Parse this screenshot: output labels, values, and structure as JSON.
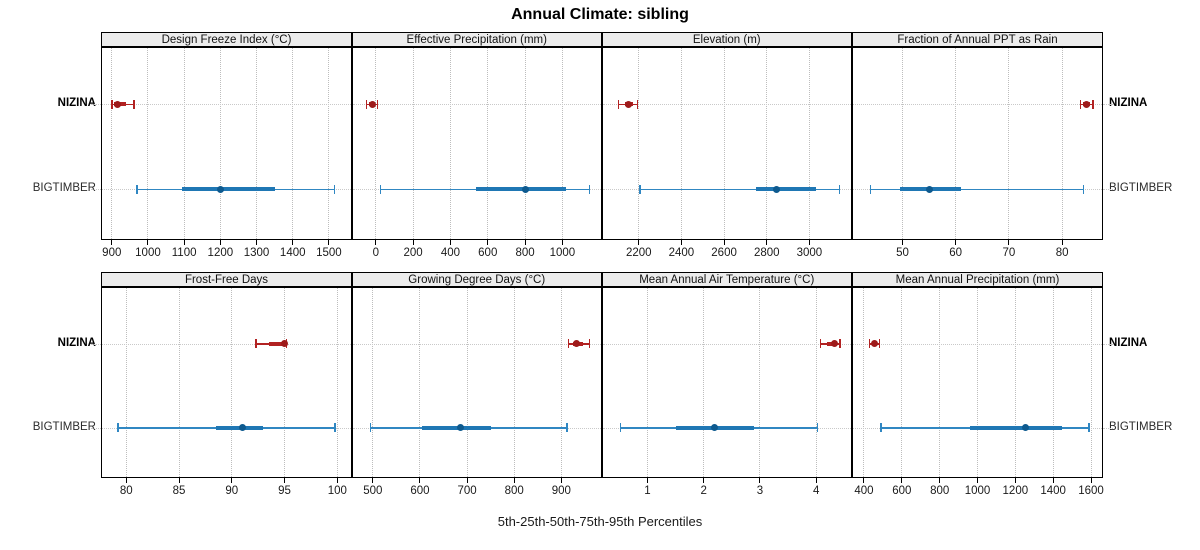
{
  "chart_data": {
    "type": "dotplot",
    "title": "Annual Climate: sibling",
    "footer": "5th-25th-50th-75th-95th Percentiles",
    "percentiles": [
      "5th",
      "25th",
      "50th",
      "75th",
      "95th"
    ],
    "grid": "dotted",
    "layout_hint": "2 rows x 4 columns trellis, shared category axis NIZINA/BIGTIMBER labeled on both sides",
    "groups": [
      {
        "name": "NIZINA",
        "line": "#B22222",
        "bar": "#B22222",
        "dot": "#9E1A1A",
        "emphasis": true
      },
      {
        "name": "BIGTIMBER",
        "line": "#3087C2",
        "bar": "#1F77B4",
        "dot": "#0E5A8F",
        "emphasis": false
      }
    ],
    "panels": [
      {
        "label": "Design Freeze Index (°C)",
        "row": 0,
        "col": 0,
        "ticks": [
          900,
          1000,
          1100,
          1200,
          1300,
          1400,
          1500
        ],
        "xlim": [
          873,
          1561
        ],
        "values": {
          "NIZINA": [
            900,
            905,
            917,
            940,
            962
          ],
          "BIGTIMBER": [
            970,
            1095,
            1200,
            1350,
            1515
          ]
        }
      },
      {
        "label": "Effective Precipitation (mm)",
        "row": 0,
        "col": 1,
        "ticks": [
          0,
          200,
          400,
          600,
          800,
          1000
        ],
        "xlim": [
          -122,
          1204
        ],
        "values": {
          "NIZINA": [
            -50,
            -35,
            -20,
            -5,
            10
          ],
          "BIGTIMBER": [
            25,
            535,
            800,
            1020,
            1145
          ]
        }
      },
      {
        "label": "Elevation (m)",
        "row": 0,
        "col": 2,
        "ticks": [
          2200,
          2400,
          2600,
          2800,
          3000
        ],
        "xlim": [
          2030,
          3195
        ],
        "values": {
          "NIZINA": [
            2105,
            2135,
            2152,
            2172,
            2195
          ],
          "BIGTIMBER": [
            2205,
            2750,
            2845,
            3030,
            3140
          ]
        }
      },
      {
        "label": "Fraction of Annual PPT as Rain",
        "row": 0,
        "col": 3,
        "ticks": [
          50,
          60,
          70,
          80
        ],
        "xlim": [
          40.7,
          87.5
        ],
        "values": {
          "NIZINA": [
            83.5,
            84,
            84.6,
            85.2,
            85.8
          ],
          "BIGTIMBER": [
            44,
            49.5,
            55,
            61,
            84
          ]
        }
      },
      {
        "label": "Frost-Free Days",
        "row": 1,
        "col": 0,
        "ticks": [
          80,
          85,
          90,
          95,
          100
        ],
        "xlim": [
          77.7,
          101.3
        ],
        "values": {
          "NIZINA": [
            92.3,
            93.5,
            95,
            95,
            95.2
          ],
          "BIGTIMBER": [
            79.2,
            88.5,
            91,
            93,
            99.8
          ]
        }
      },
      {
        "label": "Growing Degree Days (°C)",
        "row": 1,
        "col": 1,
        "ticks": [
          500,
          600,
          700,
          800,
          900
        ],
        "xlim": [
          458,
          983
        ],
        "values": {
          "NIZINA": [
            915,
            925,
            933,
            945,
            960
          ],
          "BIGTIMBER": [
            495,
            605,
            685,
            750,
            912
          ]
        }
      },
      {
        "label": "Mean Annual Air Temperature (°C)",
        "row": 1,
        "col": 2,
        "ticks": [
          1,
          2,
          3,
          4
        ],
        "xlim": [
          0.2,
          4.62
        ],
        "values": {
          "NIZINA": [
            4.08,
            4.2,
            4.32,
            4.38,
            4.42
          ],
          "BIGTIMBER": [
            0.52,
            1.5,
            2.2,
            2.9,
            4.02
          ]
        }
      },
      {
        "label": "Mean Annual Precipitation (mm)",
        "row": 1,
        "col": 3,
        "ticks": [
          400,
          600,
          800,
          1000,
          1200,
          1400,
          1600
        ],
        "xlim": [
          342,
          1658
        ],
        "values": {
          "NIZINA": [
            430,
            445,
            457,
            470,
            483
          ],
          "BIGTIMBER": [
            490,
            960,
            1255,
            1445,
            1590
          ]
        }
      }
    ]
  }
}
